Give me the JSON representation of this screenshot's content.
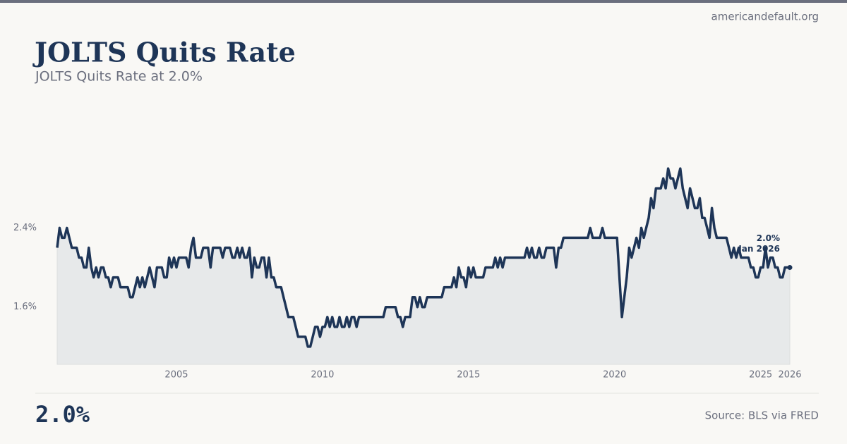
{
  "chart_data": {
    "type": "line",
    "site": "americandefault.org",
    "title": "JOLTS Quits Rate",
    "subtitle": "JOLTS Quits Rate at 2.0%",
    "headline": "2.0%",
    "source": "Source: BLS via FRED",
    "end_annotation": {
      "value_label": "2.0%",
      "date_label": "Jan 2026"
    },
    "x": [
      "2000-12",
      "2001-01",
      "2001-02",
      "2001-03",
      "2001-04",
      "2001-05",
      "2001-06",
      "2001-07",
      "2001-08",
      "2001-09",
      "2001-10",
      "2001-11",
      "2001-12",
      "2002-01",
      "2002-02",
      "2002-03",
      "2002-04",
      "2002-05",
      "2002-06",
      "2002-07",
      "2002-08",
      "2002-09",
      "2002-10",
      "2002-11",
      "2002-12",
      "2003-01",
      "2003-02",
      "2003-03",
      "2003-04",
      "2003-05",
      "2003-06",
      "2003-07",
      "2003-08",
      "2003-09",
      "2003-10",
      "2003-11",
      "2003-12",
      "2004-01",
      "2004-02",
      "2004-03",
      "2004-04",
      "2004-05",
      "2004-06",
      "2004-07",
      "2004-08",
      "2004-09",
      "2004-10",
      "2004-11",
      "2004-12",
      "2005-01",
      "2005-02",
      "2005-03",
      "2005-04",
      "2005-05",
      "2005-06",
      "2005-07",
      "2005-08",
      "2005-09",
      "2005-10",
      "2005-11",
      "2005-12",
      "2006-01",
      "2006-02",
      "2006-03",
      "2006-04",
      "2006-05",
      "2006-06",
      "2006-07",
      "2006-08",
      "2006-09",
      "2006-10",
      "2006-11",
      "2006-12",
      "2007-01",
      "2007-02",
      "2007-03",
      "2007-04",
      "2007-05",
      "2007-06",
      "2007-07",
      "2007-08",
      "2007-09",
      "2007-10",
      "2007-11",
      "2007-12",
      "2008-01",
      "2008-02",
      "2008-03",
      "2008-04",
      "2008-05",
      "2008-06",
      "2008-07",
      "2008-08",
      "2008-09",
      "2008-10",
      "2008-11",
      "2008-12",
      "2009-01",
      "2009-02",
      "2009-03",
      "2009-04",
      "2009-05",
      "2009-06",
      "2009-07",
      "2009-08",
      "2009-09",
      "2009-10",
      "2009-11",
      "2009-12",
      "2010-01",
      "2010-02",
      "2010-03",
      "2010-04",
      "2010-05",
      "2010-06",
      "2010-07",
      "2010-08",
      "2010-09",
      "2010-10",
      "2010-11",
      "2010-12",
      "2011-01",
      "2011-02",
      "2011-03",
      "2011-04",
      "2011-05",
      "2011-06",
      "2011-07",
      "2011-08",
      "2011-09",
      "2011-10",
      "2011-11",
      "2011-12",
      "2012-01",
      "2012-02",
      "2012-03",
      "2012-04",
      "2012-05",
      "2012-06",
      "2012-07",
      "2012-08",
      "2012-09",
      "2012-10",
      "2012-11",
      "2012-12",
      "2013-01",
      "2013-02",
      "2013-03",
      "2013-04",
      "2013-05",
      "2013-06",
      "2013-07",
      "2013-08",
      "2013-09",
      "2013-10",
      "2013-11",
      "2013-12",
      "2014-01",
      "2014-02",
      "2014-03",
      "2014-04",
      "2014-05",
      "2014-06",
      "2014-07",
      "2014-08",
      "2014-09",
      "2014-10",
      "2014-11",
      "2014-12",
      "2015-01",
      "2015-02",
      "2015-03",
      "2015-04",
      "2015-05",
      "2015-06",
      "2015-07",
      "2015-08",
      "2015-09",
      "2015-10",
      "2015-11",
      "2015-12",
      "2016-01",
      "2016-02",
      "2016-03",
      "2016-04",
      "2016-05",
      "2016-06",
      "2016-07",
      "2016-08",
      "2016-09",
      "2016-10",
      "2016-11",
      "2016-12",
      "2017-01",
      "2017-02",
      "2017-03",
      "2017-04",
      "2017-05",
      "2017-06",
      "2017-07",
      "2017-08",
      "2017-09",
      "2017-10",
      "2017-11",
      "2017-12",
      "2018-01",
      "2018-02",
      "2018-03",
      "2018-04",
      "2018-05",
      "2018-06",
      "2018-07",
      "2018-08",
      "2018-09",
      "2018-10",
      "2018-11",
      "2018-12",
      "2019-01",
      "2019-02",
      "2019-03",
      "2019-04",
      "2019-05",
      "2019-06",
      "2019-07",
      "2019-08",
      "2019-09",
      "2019-10",
      "2019-11",
      "2019-12",
      "2020-01",
      "2020-02",
      "2020-03",
      "2020-04",
      "2020-05",
      "2020-06",
      "2020-07",
      "2020-08",
      "2020-09",
      "2020-10",
      "2020-11",
      "2020-12",
      "2021-01",
      "2021-02",
      "2021-03",
      "2021-04",
      "2021-05",
      "2021-06",
      "2021-07",
      "2021-08",
      "2021-09",
      "2021-10",
      "2021-11",
      "2021-12",
      "2022-01",
      "2022-02",
      "2022-03",
      "2022-04",
      "2022-05",
      "2022-06",
      "2022-07",
      "2022-08",
      "2022-09",
      "2022-10",
      "2022-11",
      "2022-12",
      "2023-01",
      "2023-02",
      "2023-03",
      "2023-04",
      "2023-05",
      "2023-06",
      "2023-07",
      "2023-08",
      "2023-09",
      "2023-10",
      "2023-11",
      "2023-12",
      "2024-01",
      "2024-02",
      "2024-03",
      "2024-04",
      "2024-05",
      "2024-06",
      "2024-07",
      "2024-08",
      "2024-09",
      "2024-10",
      "2024-11",
      "2024-12",
      "2025-01",
      "2025-02",
      "2025-03",
      "2025-04",
      "2025-05",
      "2025-06",
      "2025-07",
      "2025-08",
      "2025-09",
      "2025-10",
      "2025-11",
      "2025-12",
      "2026-01"
    ],
    "series": [
      {
        "name": "JOLTS Quits Rate",
        "color": "#1e3557",
        "values": [
          2.2,
          2.4,
          2.3,
          2.3,
          2.4,
          2.3,
          2.2,
          2.2,
          2.2,
          2.1,
          2.1,
          2.0,
          2.0,
          2.2,
          2.0,
          1.9,
          2.0,
          1.9,
          2.0,
          2.0,
          1.9,
          1.9,
          1.8,
          1.9,
          1.9,
          1.9,
          1.8,
          1.8,
          1.8,
          1.8,
          1.7,
          1.7,
          1.8,
          1.9,
          1.8,
          1.9,
          1.8,
          1.9,
          2.0,
          1.9,
          1.8,
          2.0,
          2.0,
          2.0,
          1.9,
          1.9,
          2.1,
          2.0,
          2.1,
          2.0,
          2.1,
          2.1,
          2.1,
          2.1,
          2.0,
          2.2,
          2.3,
          2.1,
          2.1,
          2.1,
          2.2,
          2.2,
          2.2,
          2.0,
          2.2,
          2.2,
          2.2,
          2.2,
          2.1,
          2.2,
          2.2,
          2.2,
          2.1,
          2.1,
          2.2,
          2.1,
          2.2,
          2.1,
          2.1,
          2.2,
          1.9,
          2.1,
          2.0,
          2.0,
          2.1,
          2.1,
          1.9,
          2.1,
          1.9,
          1.9,
          1.8,
          1.8,
          1.8,
          1.7,
          1.6,
          1.5,
          1.5,
          1.5,
          1.4,
          1.3,
          1.3,
          1.3,
          1.3,
          1.2,
          1.2,
          1.3,
          1.4,
          1.4,
          1.3,
          1.4,
          1.4,
          1.5,
          1.4,
          1.5,
          1.4,
          1.4,
          1.5,
          1.4,
          1.4,
          1.5,
          1.4,
          1.5,
          1.5,
          1.4,
          1.5,
          1.5,
          1.5,
          1.5,
          1.5,
          1.5,
          1.5,
          1.5,
          1.5,
          1.5,
          1.5,
          1.6,
          1.6,
          1.6,
          1.6,
          1.6,
          1.5,
          1.5,
          1.4,
          1.5,
          1.5,
          1.5,
          1.7,
          1.7,
          1.6,
          1.7,
          1.6,
          1.6,
          1.7,
          1.7,
          1.7,
          1.7,
          1.7,
          1.7,
          1.7,
          1.8,
          1.8,
          1.8,
          1.8,
          1.9,
          1.8,
          2.0,
          1.9,
          1.9,
          1.8,
          2.0,
          1.9,
          2.0,
          1.9,
          1.9,
          1.9,
          1.9,
          2.0,
          2.0,
          2.0,
          2.0,
          2.1,
          2.0,
          2.1,
          2.0,
          2.1,
          2.1,
          2.1,
          2.1,
          2.1,
          2.1,
          2.1,
          2.1,
          2.1,
          2.2,
          2.1,
          2.2,
          2.1,
          2.1,
          2.2,
          2.1,
          2.1,
          2.2,
          2.2,
          2.2,
          2.2,
          2.0,
          2.2,
          2.2,
          2.3,
          2.3,
          2.3,
          2.3,
          2.3,
          2.3,
          2.3,
          2.3,
          2.3,
          2.3,
          2.3,
          2.4,
          2.3,
          2.3,
          2.3,
          2.3,
          2.4,
          2.3,
          2.3,
          2.3,
          2.3,
          2.3,
          2.3,
          1.9,
          1.5,
          1.7,
          1.9,
          2.2,
          2.1,
          2.2,
          2.3,
          2.2,
          2.4,
          2.3,
          2.4,
          2.5,
          2.7,
          2.6,
          2.8,
          2.8,
          2.8,
          2.9,
          2.8,
          3.0,
          2.9,
          2.9,
          2.8,
          2.9,
          3.0,
          2.8,
          2.7,
          2.6,
          2.8,
          2.7,
          2.6,
          2.6,
          2.7,
          2.5,
          2.5,
          2.4,
          2.3,
          2.6,
          2.4,
          2.3,
          2.3,
          2.3,
          2.3,
          2.3,
          2.2,
          2.1,
          2.2,
          2.1,
          2.2,
          2.1,
          2.1,
          2.1,
          2.1,
          2.0,
          2.0,
          1.9,
          1.9,
          2.0,
          2.0,
          2.2,
          2.0,
          2.1,
          2.1,
          2.0,
          2.0,
          1.9,
          1.9,
          2.0,
          2.0,
          2.0
        ]
      }
    ],
    "xlim": [
      2000.9167,
      2026
    ],
    "xticks": [
      2005,
      2010,
      2015,
      2020,
      2025,
      2026
    ],
    "ylim": [
      1.0,
      3.2
    ],
    "yticks": [
      {
        "value": 1.6,
        "label": "1.6%"
      },
      {
        "value": 2.4,
        "label": "2.4%"
      }
    ],
    "area_color": "#e7e9ea"
  }
}
